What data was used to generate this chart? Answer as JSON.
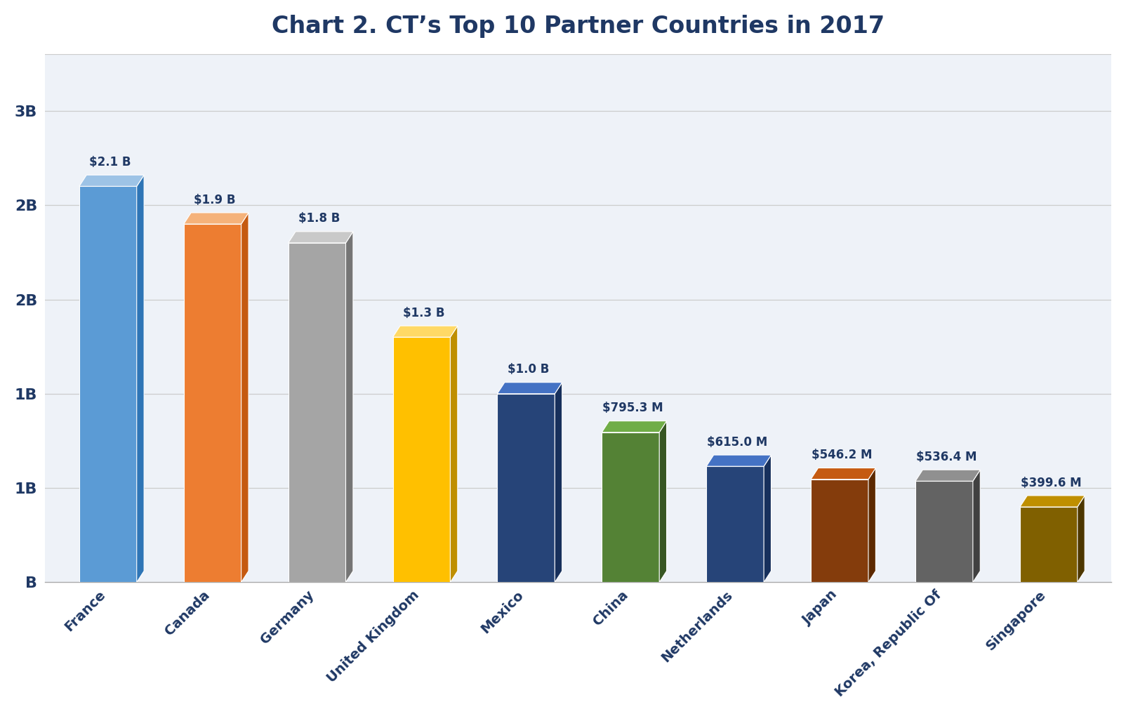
{
  "title": "Chart 2. CT’s Top 10 Partner Countries in 2017",
  "categories": [
    "France",
    "Canada",
    "Germany",
    "United Kingdom",
    "Mexico",
    "China",
    "Netherlands",
    "Japan",
    "Korea, Republic Of",
    "Singapore"
  ],
  "values": [
    2100,
    1900,
    1800,
    1300,
    1000,
    795.3,
    615.0,
    546.2,
    536.4,
    399.6
  ],
  "labels": [
    "$2.1 B",
    "$1.9 B",
    "$1.8 B",
    "$1.3 B",
    "$1.0 B",
    "$795.3 M",
    "$615.0 M",
    "$546.2 M",
    "$536.4 M",
    "$399.6 M"
  ],
  "bar_face_colors": [
    "#5B9BD5",
    "#ED7D31",
    "#A5A5A5",
    "#FFC000",
    "#264478",
    "#548235",
    "#264478",
    "#843C0C",
    "#636363",
    "#806000"
  ],
  "bar_top_colors": [
    "#9DC3E6",
    "#F5B27A",
    "#C9C9C9",
    "#FFD966",
    "#4472C4",
    "#70AD47",
    "#4472C4",
    "#C55A11",
    "#909090",
    "#BF8F00"
  ],
  "bar_side_colors": [
    "#2E75B6",
    "#C55A11",
    "#757575",
    "#BF8F00",
    "#17305C",
    "#375623",
    "#17305C",
    "#5C2900",
    "#404040",
    "#4D3700"
  ],
  "ytick_positions": [
    0,
    500,
    1000,
    1500,
    2000,
    2500
  ],
  "ytick_labels": [
    "B",
    "1B",
    "1B",
    "2B",
    "2B",
    "3B"
  ],
  "grid_positions": [
    500,
    1000,
    1500,
    2000,
    2500
  ],
  "ylim": [
    0,
    2800
  ],
  "background_color": "#FFFFFF",
  "plot_bg_color": "#EEF2F8",
  "title_color": "#1F3864",
  "title_fontsize": 24,
  "label_fontsize": 12,
  "axis_label_color": "#1F3864",
  "axis_label_fontsize": 16,
  "xtick_fontsize": 14
}
